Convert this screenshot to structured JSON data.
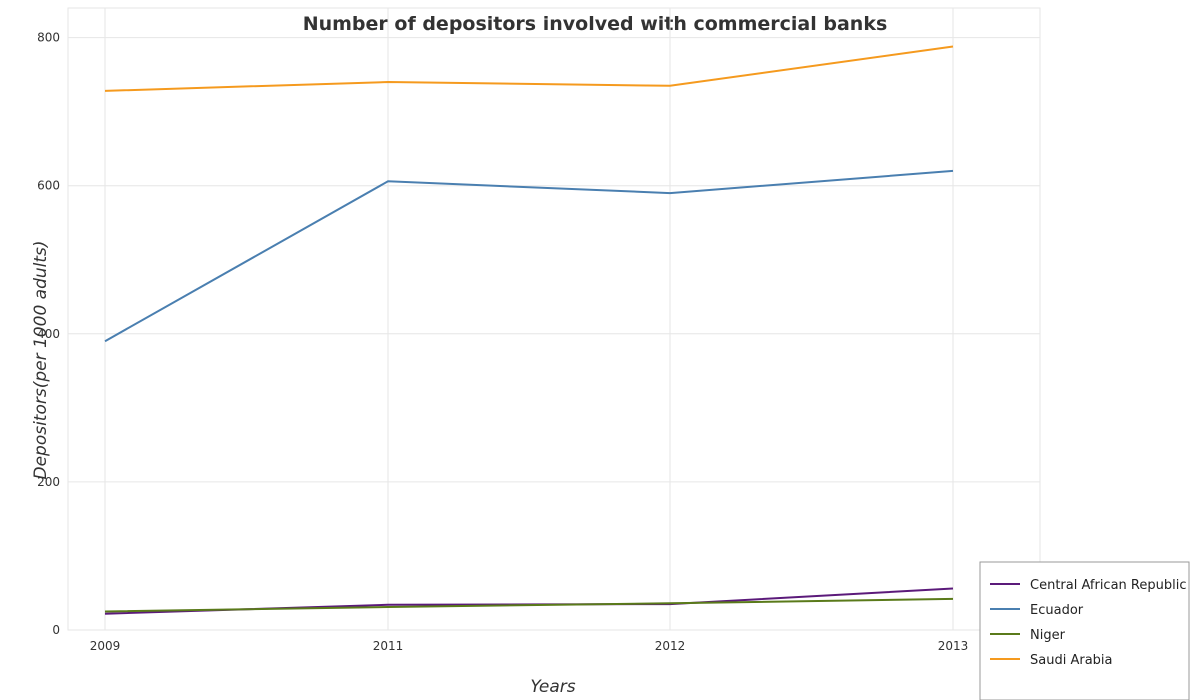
{
  "chart_data": {
    "type": "line",
    "title": "Number of depositors involved with commercial banks",
    "xlabel": "Years",
    "ylabel": "Depositors(per 1000 adults)",
    "x": [
      "2009",
      "2011",
      "2012",
      "2013"
    ],
    "ylim": [
      0,
      840
    ],
    "yticks": [
      0,
      200,
      400,
      600,
      800
    ],
    "grid": true,
    "legend_position": "bottom-right",
    "series": [
      {
        "name": "Central African Republic",
        "color": "#5b1a7a",
        "values": [
          22,
          34,
          35,
          56
        ]
      },
      {
        "name": "Ecuador",
        "color": "#4a7fb0",
        "values": [
          390,
          606,
          590,
          620
        ]
      },
      {
        "name": "Niger",
        "color": "#5a7a1a",
        "values": [
          25,
          31,
          36,
          42
        ]
      },
      {
        "name": "Saudi Arabia",
        "color": "#f59a1e",
        "values": [
          728,
          740,
          735,
          788
        ]
      }
    ]
  }
}
